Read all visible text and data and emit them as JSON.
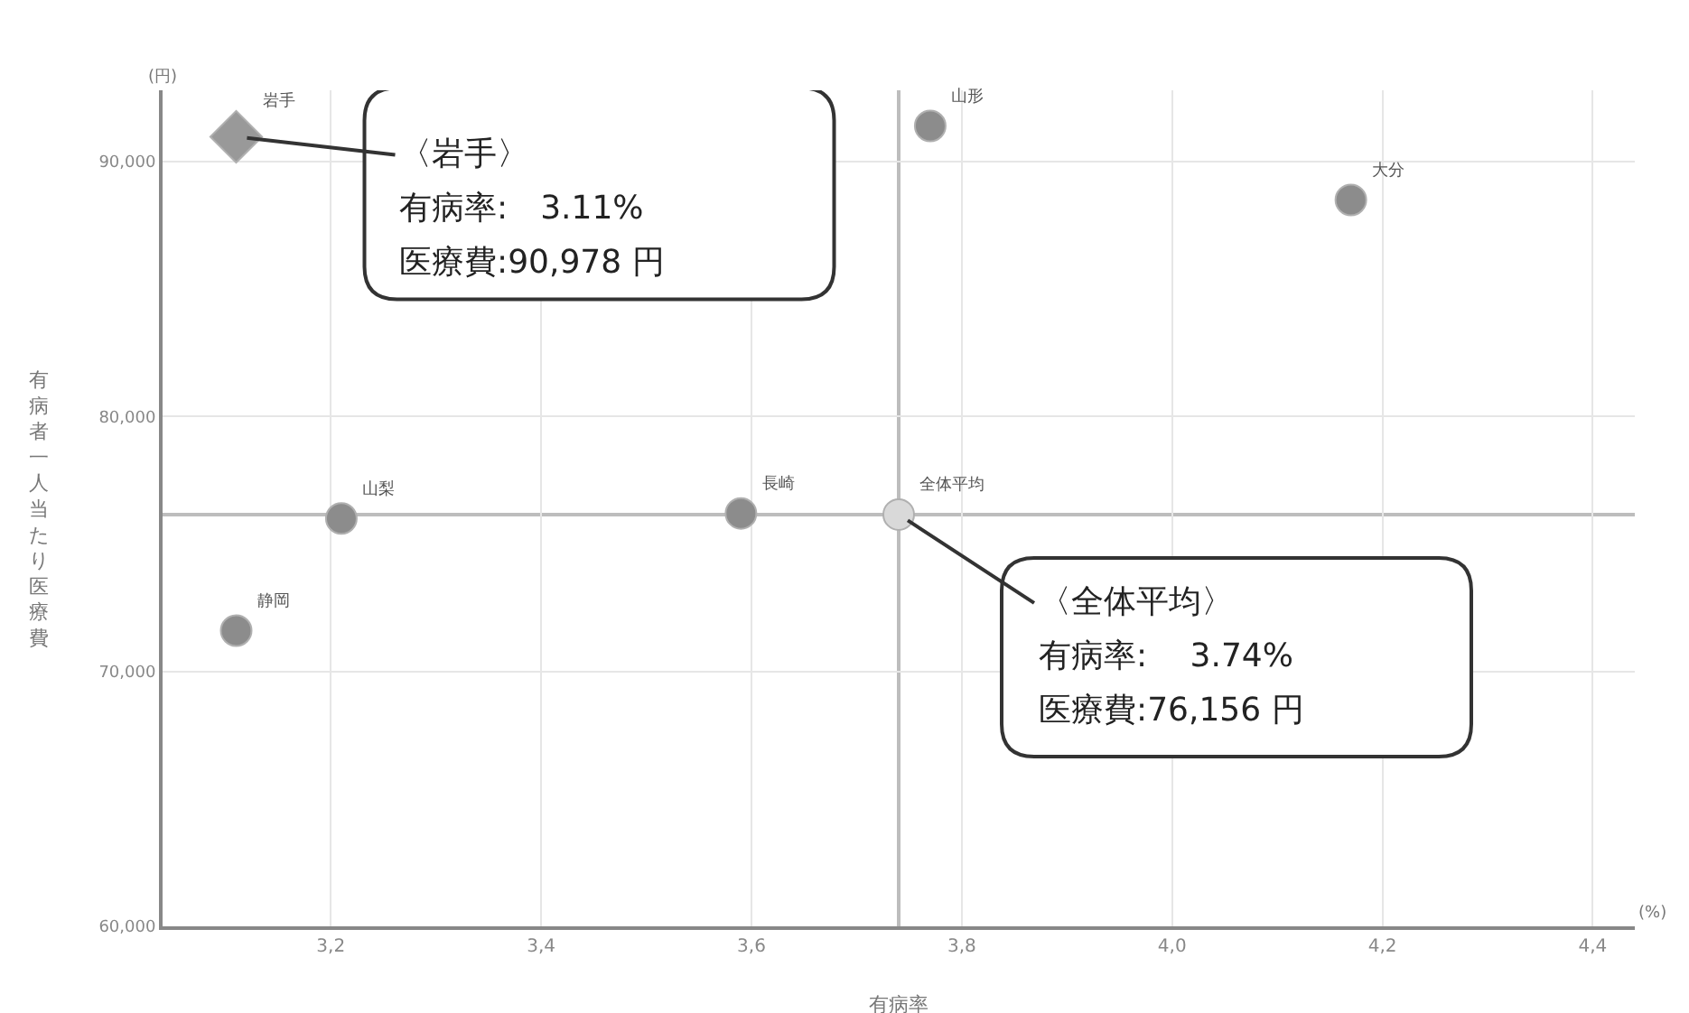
{
  "chart_data": {
    "type": "scatter",
    "xlabel": "有病率",
    "ylabel": "有病者一人当たり医療費",
    "xlim": [
      3.04,
      4.44
    ],
    "ylim": [
      60000,
      92800
    ],
    "xticks": [
      {
        "value": 3.2,
        "label": "3,2"
      },
      {
        "value": 3.4,
        "label": "3,4"
      },
      {
        "value": 3.6,
        "label": "3,6"
      },
      {
        "value": 3.8,
        "label": "3,8"
      },
      {
        "value": 4.0,
        "label": "4,0"
      },
      {
        "value": 4.2,
        "label": "4,2"
      },
      {
        "value": 4.4,
        "label": "4,4"
      }
    ],
    "yticks": [
      {
        "value": 60000,
        "label": "60,000"
      },
      {
        "value": 70000,
        "label": "70,000"
      },
      {
        "value": 80000,
        "label": "80,000"
      },
      {
        "value": 90000,
        "label": "90,000"
      }
    ],
    "grid": true,
    "legend": false,
    "series": [
      {
        "name": "岩手",
        "color": "#999999",
        "marker": "diamond",
        "x": [
          3.11
        ],
        "values": [
          90978
        ]
      },
      {
        "name": "山形",
        "color": "#8c8c8c",
        "marker": "circle",
        "x": [
          3.77
        ],
        "values": [
          91400
        ]
      },
      {
        "name": "大分",
        "color": "#8c8c8c",
        "marker": "circle",
        "x": [
          4.17
        ],
        "values": [
          88500
        ]
      },
      {
        "name": "山梨",
        "color": "#8c8c8c",
        "marker": "circle",
        "x": [
          3.21
        ],
        "values": [
          76000
        ]
      },
      {
        "name": "長崎",
        "color": "#8c8c8c",
        "marker": "circle",
        "x": [
          3.59
        ],
        "values": [
          76200
        ]
      },
      {
        "name": "全体平均",
        "color": "#d9d9d9",
        "marker": "circle",
        "x": [
          3.74
        ],
        "values": [
          76156
        ]
      },
      {
        "name": "静岡",
        "color": "#8c8c8c",
        "marker": "circle",
        "x": [
          3.11
        ],
        "values": [
          71600
        ]
      }
    ],
    "ref_lines": [
      {
        "axis": "x",
        "value": 3.74,
        "color": "#bdbdbd"
      },
      {
        "axis": "y",
        "value": 76156,
        "color": "#bdbdbd"
      }
    ],
    "annotations": [
      "(円)",
      "(%)",
      {
        "text": "〈岩手〉",
        "x": 3.11,
        "y": 90978
      },
      "有病率:　3.11%",
      "医療費:90,978 円",
      {
        "text": "〈全体平均〉",
        "x": 3.74,
        "y": 76156
      },
      "有病率:　 3.74%",
      "医療費:76,156 円"
    ]
  }
}
